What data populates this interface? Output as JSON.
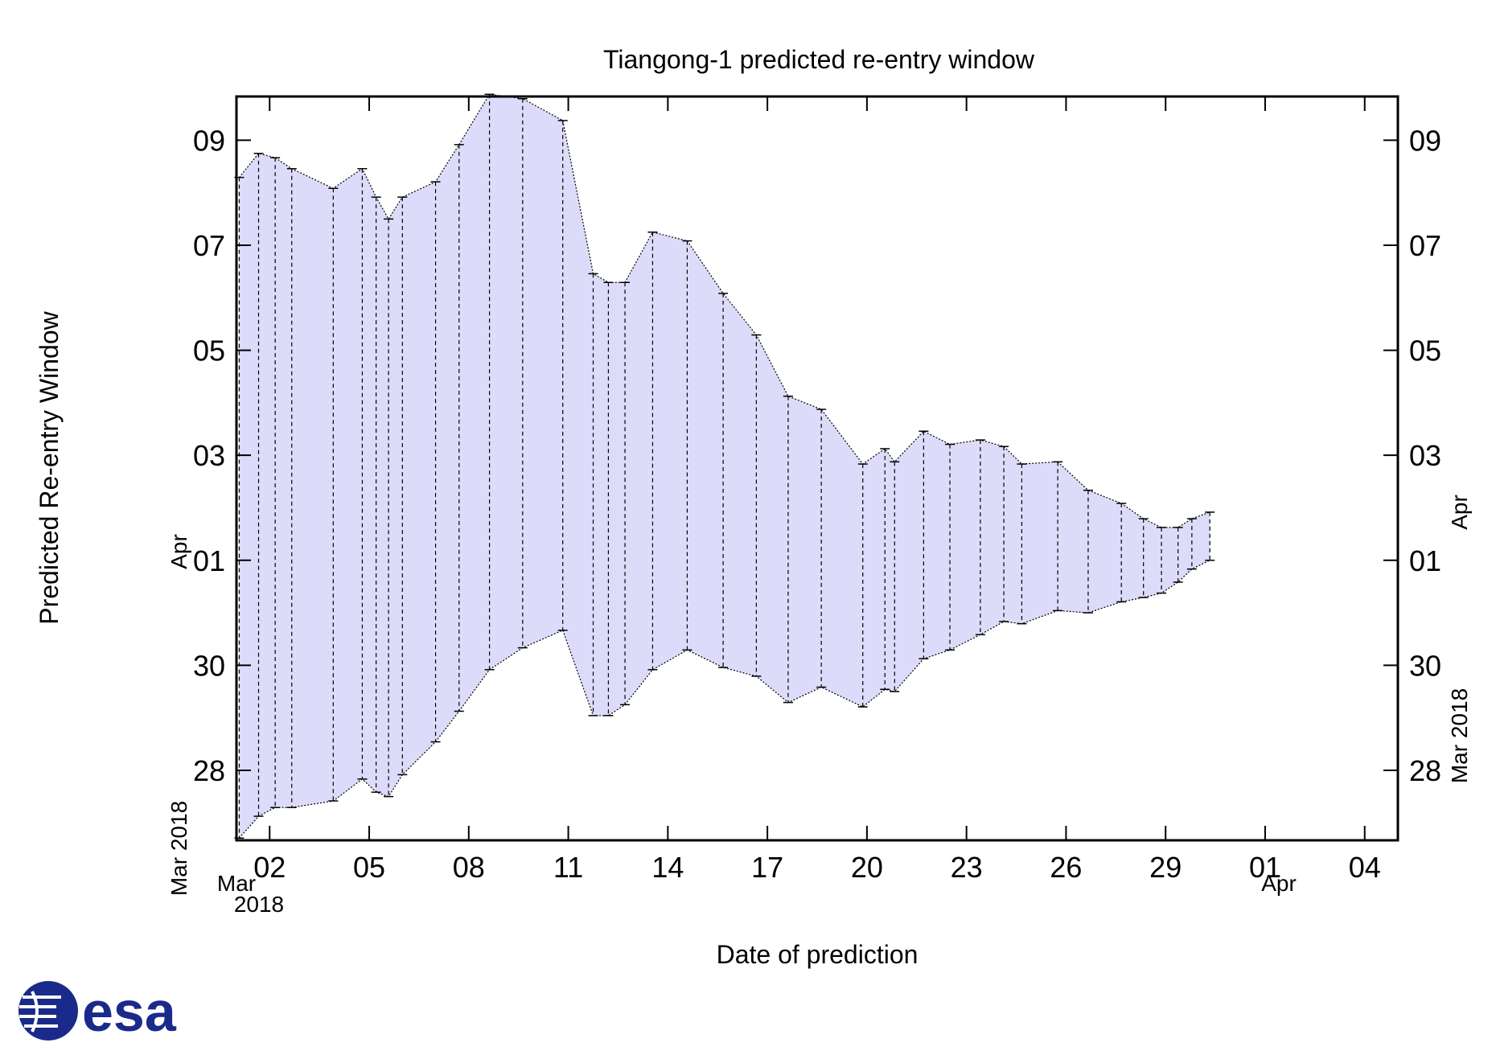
{
  "chart_data": {
    "type": "area",
    "title": "Tiangong-1 predicted re-entry window",
    "xlabel": "Date of prediction",
    "ylabel": "Predicted Re-entry Window",
    "x_axis": {
      "ticks": [
        "02",
        "05",
        "08",
        "11",
        "14",
        "17",
        "20",
        "23",
        "26",
        "29",
        "01",
        "04"
      ],
      "tick_dates": [
        "2018-03-02",
        "2018-03-05",
        "2018-03-08",
        "2018-03-11",
        "2018-03-14",
        "2018-03-17",
        "2018-03-20",
        "2018-03-23",
        "2018-03-26",
        "2018-03-29",
        "2018-04-01",
        "2018-04-04"
      ],
      "range": [
        "2018-03-01T00:00",
        "2018-04-05T00:00"
      ],
      "start_month_label": "Mar",
      "start_year_label": "2018",
      "end_month_label": "Apr"
    },
    "y_axis": {
      "ticks": [
        "28",
        "30",
        "01",
        "03",
        "05",
        "07",
        "09"
      ],
      "tick_dates": [
        "2018-03-28",
        "2018-03-30",
        "2018-04-01",
        "2018-04-03",
        "2018-04-05",
        "2018-04-07",
        "2018-04-09"
      ],
      "range": [
        "2018-03-26T16:00",
        "2018-04-09T20:00"
      ],
      "upper_side_label": "Apr",
      "lower_side_label": "Mar 2018"
    },
    "grid": false,
    "series": [
      {
        "fill_color": "#dcdcfa",
        "edge_color": "#000000",
        "points": [
          {
            "x": "2018-03-01T02:00",
            "lower": "2018-03-26T17:00",
            "upper": "2018-04-08T07:00"
          },
          {
            "x": "2018-03-01T16:00",
            "lower": "2018-03-27T03:00",
            "upper": "2018-04-08T18:00"
          },
          {
            "x": "2018-03-02T04:00",
            "lower": "2018-03-27T07:00",
            "upper": "2018-04-08T16:00"
          },
          {
            "x": "2018-03-02T16:00",
            "lower": "2018-03-27T07:00",
            "upper": "2018-04-08T11:00"
          },
          {
            "x": "2018-03-03T22:00",
            "lower": "2018-03-27T10:00",
            "upper": "2018-04-08T02:00"
          },
          {
            "x": "2018-03-04T19:00",
            "lower": "2018-03-27T20:00",
            "upper": "2018-04-08T11:00"
          },
          {
            "x": "2018-03-05T05:00",
            "lower": "2018-03-27T14:00",
            "upper": "2018-04-07T22:00"
          },
          {
            "x": "2018-03-05T14:00",
            "lower": "2018-03-27T12:00",
            "upper": "2018-04-07T12:00"
          },
          {
            "x": "2018-03-06T00:00",
            "lower": "2018-03-27T22:00",
            "upper": "2018-04-07T22:00"
          },
          {
            "x": "2018-03-07T00:00",
            "lower": "2018-03-28T13:00",
            "upper": "2018-04-08T05:00"
          },
          {
            "x": "2018-03-07T17:00",
            "lower": "2018-03-29T03:00",
            "upper": "2018-04-08T22:00"
          },
          {
            "x": "2018-03-08T15:00",
            "lower": "2018-03-29T22:00",
            "upper": "2018-04-09T21:00"
          },
          {
            "x": "2018-03-09T15:00",
            "lower": "2018-03-30T08:00",
            "upper": "2018-04-09T19:00"
          },
          {
            "x": "2018-03-10T20:00",
            "lower": "2018-03-30T16:00",
            "upper": "2018-04-09T09:00"
          },
          {
            "x": "2018-03-11T18:00",
            "lower": "2018-03-29T01:00",
            "upper": "2018-04-06T11:00"
          },
          {
            "x": "2018-03-12T05:00",
            "lower": "2018-03-29T01:00",
            "upper": "2018-04-06T07:00"
          },
          {
            "x": "2018-03-12T17:00",
            "lower": "2018-03-29T06:00",
            "upper": "2018-04-06T07:00"
          },
          {
            "x": "2018-03-13T13:00",
            "lower": "2018-03-29T22:00",
            "upper": "2018-04-07T06:00"
          },
          {
            "x": "2018-03-14T14:00",
            "lower": "2018-03-30T07:00",
            "upper": "2018-04-07T02:00"
          },
          {
            "x": "2018-03-15T16:00",
            "lower": "2018-03-29T23:00",
            "upper": "2018-04-06T02:00"
          },
          {
            "x": "2018-03-16T16:00",
            "lower": "2018-03-29T19:00",
            "upper": "2018-04-05T07:00"
          },
          {
            "x": "2018-03-17T15:00",
            "lower": "2018-03-29T07:00",
            "upper": "2018-04-04T03:00"
          },
          {
            "x": "2018-03-18T15:00",
            "lower": "2018-03-29T14:00",
            "upper": "2018-04-03T21:00"
          },
          {
            "x": "2018-03-19T21:00",
            "lower": "2018-03-29T05:00",
            "upper": "2018-04-02T20:00"
          },
          {
            "x": "2018-03-20T13:00",
            "lower": "2018-03-29T13:00",
            "upper": "2018-04-03T03:00"
          },
          {
            "x": "2018-03-20T20:00",
            "lower": "2018-03-29T12:00",
            "upper": "2018-04-02T21:00"
          },
          {
            "x": "2018-03-21T17:00",
            "lower": "2018-03-30T03:00",
            "upper": "2018-04-03T11:00"
          },
          {
            "x": "2018-03-22T12:00",
            "lower": "2018-03-30T07:00",
            "upper": "2018-04-03T05:00"
          },
          {
            "x": "2018-03-23T10:00",
            "lower": "2018-03-30T14:00",
            "upper": "2018-04-03T07:00"
          },
          {
            "x": "2018-03-24T03:00",
            "lower": "2018-03-30T20:00",
            "upper": "2018-04-03T04:00"
          },
          {
            "x": "2018-03-24T16:00",
            "lower": "2018-03-30T19:00",
            "upper": "2018-04-02T20:00"
          },
          {
            "x": "2018-03-25T18:00",
            "lower": "2018-03-31T01:00",
            "upper": "2018-04-02T21:00"
          },
          {
            "x": "2018-03-26T16:00",
            "lower": "2018-03-31T00:00",
            "upper": "2018-04-02T08:00"
          },
          {
            "x": "2018-03-27T16:00",
            "lower": "2018-03-31T05:00",
            "upper": "2018-04-02T02:00"
          },
          {
            "x": "2018-03-28T08:00",
            "lower": "2018-03-31T07:00",
            "upper": "2018-04-01T19:00"
          },
          {
            "x": "2018-03-28T21:00",
            "lower": "2018-03-31T09:00",
            "upper": "2018-04-01T15:00"
          },
          {
            "x": "2018-03-29T09:00",
            "lower": "2018-03-31T14:00",
            "upper": "2018-04-01T15:00"
          },
          {
            "x": "2018-03-29T19:00",
            "lower": "2018-03-31T20:00",
            "upper": "2018-04-01T19:00"
          },
          {
            "x": "2018-03-30T08:00",
            "lower": "2018-04-01T00:00",
            "upper": "2018-04-01T22:00"
          }
        ]
      }
    ]
  },
  "logo": {
    "text": "esa",
    "color": "#1a2a8a"
  }
}
